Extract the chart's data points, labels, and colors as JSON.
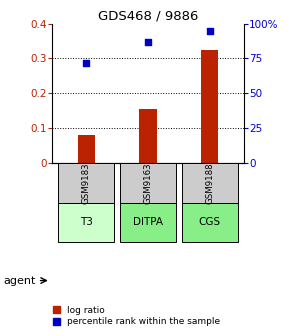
{
  "title": "GDS468 / 9886",
  "samples": [
    "GSM9183",
    "GSM9163",
    "GSM9188"
  ],
  "agents": [
    "T3",
    "DITPA",
    "CGS"
  ],
  "log_ratio": [
    0.08,
    0.155,
    0.325
  ],
  "percentile_rank": [
    72,
    87,
    95
  ],
  "bar_color": "#bb2200",
  "dot_color": "#0000cc",
  "left_ylim": [
    0,
    0.4
  ],
  "right_ylim": [
    0,
    100
  ],
  "left_yticks": [
    0,
    0.1,
    0.2,
    0.3,
    0.4
  ],
  "left_yticklabels": [
    "0",
    "0.1",
    "0.2",
    "0.3",
    "0.4"
  ],
  "right_yticks": [
    0,
    25,
    50,
    75,
    100
  ],
  "right_yticklabels": [
    "0",
    "25",
    "50",
    "75",
    "100%"
  ],
  "grid_values": [
    0.1,
    0.2,
    0.3
  ],
  "sample_bg_color": "#cccccc",
  "agent_bg_color_light": "#ccffcc",
  "agent_bg_color_dark": "#88ee88",
  "legend_bar_label": "log ratio",
  "legend_dot_label": "percentile rank within the sample",
  "agent_label": "agent"
}
